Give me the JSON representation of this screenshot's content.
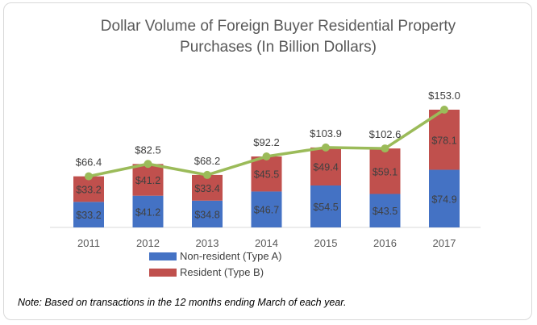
{
  "chart_data": {
    "type": "bar",
    "stacked": true,
    "title_lines": [
      "Dollar Volume of Foreign Buyer Residential Property",
      "Purchases (In Billion Dollars)"
    ],
    "categories": [
      "2011",
      "2012",
      "2013",
      "2014",
      "2015",
      "2016",
      "2017"
    ],
    "series": [
      {
        "name": "Non-resident (Type A)",
        "color": "#4472c4",
        "values": [
          33.2,
          41.2,
          34.8,
          46.7,
          54.5,
          43.5,
          74.9
        ],
        "labels": [
          "$33.2",
          "$41.2",
          "$34.8",
          "$46.7",
          "$54.5",
          "$43.5",
          "$74.9"
        ]
      },
      {
        "name": "Resident (Type B)",
        "color": "#c0504d",
        "values": [
          33.2,
          41.2,
          33.4,
          45.5,
          49.4,
          59.1,
          78.1
        ],
        "labels": [
          "$33.2",
          "$41.2",
          "$33.4",
          "$45.5",
          "$49.4",
          "$59.1",
          "$78.1"
        ]
      }
    ],
    "total_line": {
      "color": "#9bbb59",
      "values": [
        66.4,
        82.5,
        68.2,
        92.2,
        103.9,
        102.6,
        153.0
      ],
      "labels": [
        "$66.4",
        "$82.5",
        "$68.2",
        "$92.2",
        "$103.9",
        "$102.6",
        "$153.0"
      ]
    },
    "ylim": [
      0,
      160
    ],
    "grid": false,
    "legend_position": "bottom-left"
  },
  "note": "Note: Based on transactions in the 12 months ending March of each year."
}
